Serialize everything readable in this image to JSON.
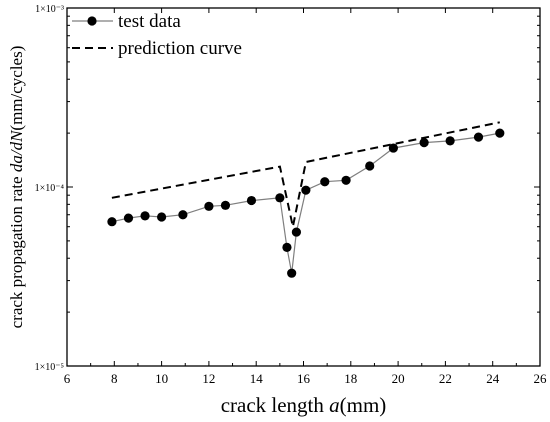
{
  "chart_data": {
    "type": "line",
    "title": "",
    "xlabel": {
      "prefix": "crack length ",
      "var": "a",
      "suffix": "(mm)"
    },
    "ylabel": {
      "prefix": "crack propagation rate ",
      "var": "da/dN",
      "suffix": "(mm/cycles)"
    },
    "xlim": [
      6,
      26
    ],
    "ylim": [
      1e-05,
      0.001
    ],
    "yscale": "log",
    "xticks": [
      6,
      8,
      10,
      12,
      14,
      16,
      18,
      20,
      22,
      24,
      26
    ],
    "yticks": [
      {
        "value": 1e-05,
        "label": "1×10⁻⁵"
      },
      {
        "value": 0.0001,
        "label": "1×10⁻⁴"
      },
      {
        "value": 0.001,
        "label": "1×10⁻³"
      }
    ],
    "legend_position": "top-left",
    "series": [
      {
        "name": "test data",
        "style": "line-markers",
        "color": "#000000",
        "line_color": "#7f7f7f",
        "x": [
          7.9,
          8.6,
          9.3,
          10.0,
          10.9,
          12.0,
          12.7,
          13.8,
          15.0,
          15.3,
          15.5,
          15.7,
          16.1,
          16.9,
          17.8,
          18.8,
          19.8,
          21.1,
          22.2,
          23.4,
          24.3
        ],
        "y": [
          6.4e-05,
          6.7e-05,
          6.9e-05,
          6.8e-05,
          7e-05,
          7.8e-05,
          7.9e-05,
          8.4e-05,
          8.7e-05,
          4.6e-05,
          3.3e-05,
          5.6e-05,
          9.6e-05,
          0.000107,
          0.000109,
          0.000131,
          0.000165,
          0.000177,
          0.000181,
          0.00019,
          0.0002
        ]
      },
      {
        "name": "prediction curve",
        "style": "dashed",
        "color": "#000000",
        "x": [
          7.9,
          15.0,
          15.55,
          16.1,
          24.3
        ],
        "y": [
          8.7e-05,
          0.00013,
          6e-05,
          0.000138,
          0.00023
        ]
      }
    ]
  }
}
